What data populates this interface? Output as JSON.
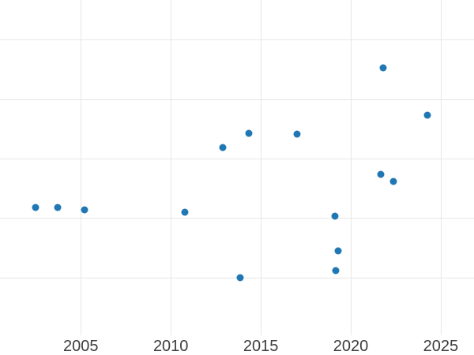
{
  "chart_data": {
    "type": "scatter",
    "title": "",
    "xlabel": "",
    "ylabel": "",
    "legend": "none",
    "grid": true,
    "x_tick_labels": [
      "2005",
      "2010",
      "2015",
      "2020",
      "2025"
    ],
    "x_tick_values": [
      2005,
      2010,
      2015,
      2020,
      2025
    ],
    "x_range": [
      2000.51,
      2026.85
    ],
    "y_gridline_values": [
      1,
      2,
      3,
      4,
      5
    ],
    "y_range": [
      0.024,
      5.668
    ],
    "points": [
      {
        "x": 2002.48,
        "y": 2.17
      },
      {
        "x": 2003.72,
        "y": 2.18
      },
      {
        "x": 2005.21,
        "y": 2.14
      },
      {
        "x": 2010.79,
        "y": 2.09
      },
      {
        "x": 2012.89,
        "y": 3.18
      },
      {
        "x": 2014.35,
        "y": 3.42
      },
      {
        "x": 2017.03,
        "y": 3.41
      },
      {
        "x": 2013.85,
        "y": 1.0
      },
      {
        "x": 2019.12,
        "y": 2.03
      },
      {
        "x": 2019.31,
        "y": 1.45
      },
      {
        "x": 2019.16,
        "y": 1.11
      },
      {
        "x": 2021.79,
        "y": 4.52
      },
      {
        "x": 2021.65,
        "y": 2.73
      },
      {
        "x": 2022.35,
        "y": 2.62
      },
      {
        "x": 2024.25,
        "y": 3.73
      }
    ]
  },
  "colors": {
    "background": "#ffffff",
    "gridline": "#e6e6e6",
    "tick_label": "#3d3d3d",
    "marker": "#1f77b4"
  }
}
